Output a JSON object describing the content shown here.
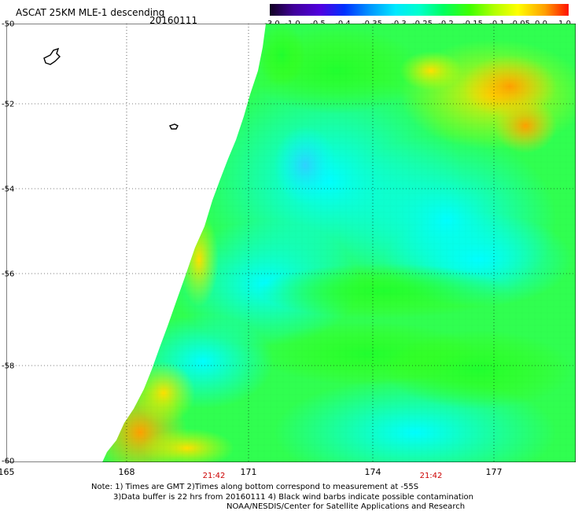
{
  "header": {
    "title": "ASCAT 25KM MLE-1 descending",
    "date": "20160111"
  },
  "colorbar": {
    "labels": [
      "-3.0",
      "-1.0",
      "-0.5",
      "-0.4",
      "-0.35",
      "-0.3",
      "-0.25",
      "-0.2",
      "-0.15",
      "-0.1",
      "-0.05",
      "0.0",
      "1.0"
    ],
    "colors": [
      "#1a0030",
      "#3a0080",
      "#5a00c8",
      "#1a3cff",
      "#0090ff",
      "#00e0ff",
      "#00ffd0",
      "#00ff60",
      "#60ff00",
      "#c8ff00",
      "#ffe000",
      "#ff9000",
      "#ff2000"
    ]
  },
  "map": {
    "lat_labels": [
      "-50",
      "-52",
      "-54",
      "-56",
      "-58",
      "-60"
    ],
    "lon_labels": [
      "165",
      "168",
      "171",
      "174",
      "177"
    ],
    "time_labels": [
      "21:42",
      "21:42"
    ]
  },
  "notes": {
    "line1": "Note: 1) Times are GMT 2)Times along bottom correspond to measurement at -55S",
    "line2": "3)Data buffer is 22 hrs from 20160111 4) Black wind barbs indicate possible contamination",
    "line3": "NOAA/NESDIS/Center for Satellite Applications and Research"
  }
}
